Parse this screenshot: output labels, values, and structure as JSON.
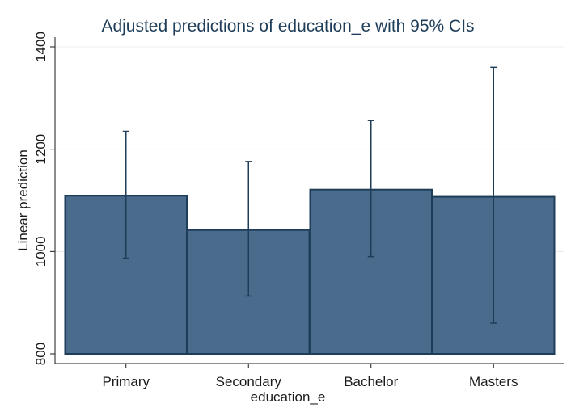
{
  "chart_data": {
    "type": "bar",
    "title": "Adjusted predictions of education_e with 95% CIs",
    "xlabel": "education_e",
    "ylabel": "Linear prediction",
    "categories": [
      "Primary",
      "Secondary",
      "Bachelor",
      "Masters"
    ],
    "series": [
      {
        "values": [
          1109,
          1042,
          1121,
          1107
        ],
        "ci_lower": [
          987,
          913,
          990,
          860
        ],
        "ci_upper": [
          1235,
          1176,
          1256,
          1360
        ]
      }
    ],
    "ylim": [
      800,
      1420
    ],
    "yticks": [
      800,
      1000,
      1200,
      1400
    ],
    "grid": true,
    "legend": "none",
    "colors": {
      "bar_fill": "#4a6b8c",
      "bar_stroke": "#1e3d59",
      "error_bar": "#1e3d59",
      "grid": "#e8ecef",
      "title": "#1e3d59"
    }
  }
}
